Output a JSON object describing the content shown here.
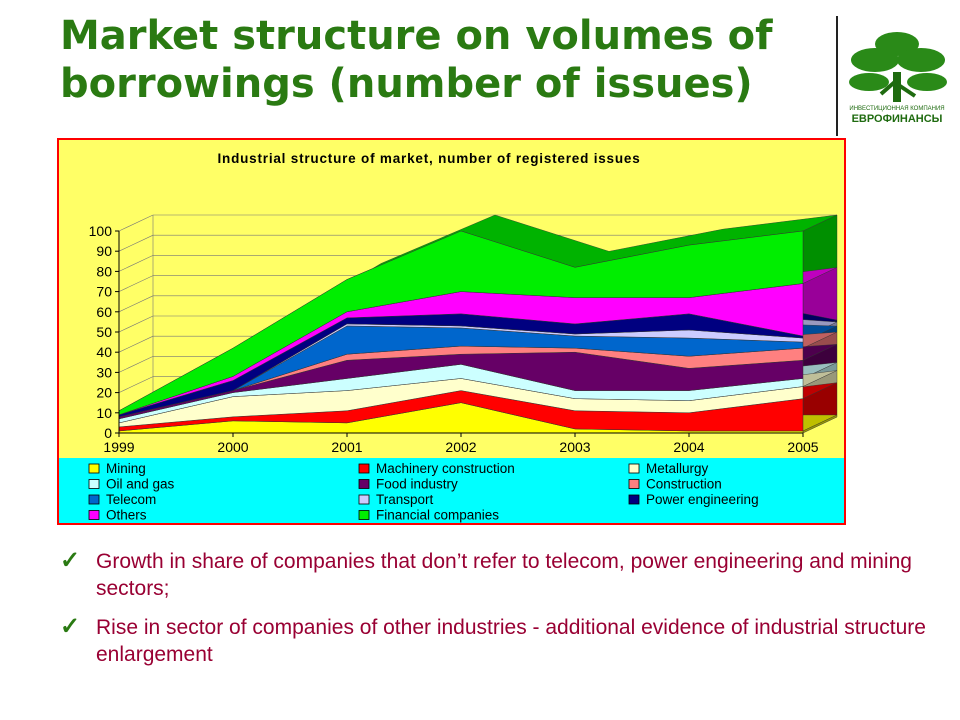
{
  "slide": {
    "title": "Market structure on volumes of borrowings (number of issues)",
    "title_color": "#2a7a12",
    "text_color": "#990033",
    "logo": {
      "caption_line1": "ИНВЕСТИЦИОННАЯ КОМПАНИЯ",
      "caption_line2": "ЕВРОФИНАНСЫ",
      "icon": "tree-icon"
    },
    "bullets": [
      "Growth in share of companies that don’t refer to telecom, power engineering and mining sectors;",
      "Rise in sector of companies of other industries  - additional evidence of industrial structure enlargement"
    ]
  },
  "chart_data": {
    "type": "area",
    "title": "Industrial structure of market, number of registered issues",
    "x": [
      "1999",
      "2000",
      "2001",
      "2002",
      "2003",
      "2004",
      "2005"
    ],
    "ylim": [
      0,
      100
    ],
    "yticks": [
      0,
      10,
      20,
      30,
      40,
      50,
      60,
      70,
      80,
      90,
      100
    ],
    "stacked": true,
    "grid": true,
    "legend_position": "bottom",
    "series": [
      {
        "name": "Mining",
        "color": "#ffff00",
        "values": [
          1,
          6,
          5,
          15,
          2,
          1,
          1
        ]
      },
      {
        "name": "Machinery construction",
        "color": "#ff0000",
        "values": [
          2,
          2,
          6,
          6,
          9,
          9,
          16
        ]
      },
      {
        "name": "Metallurgy",
        "color": "#ffffcc",
        "values": [
          2,
          10,
          10,
          6,
          6,
          6,
          6
        ]
      },
      {
        "name": "Oil and gas",
        "color": "#ccffff",
        "values": [
          2,
          2,
          6,
          7,
          4,
          5,
          4
        ]
      },
      {
        "name": "Food industry",
        "color": "#660066",
        "values": [
          1,
          1,
          9,
          5,
          19,
          11,
          9
        ]
      },
      {
        "name": "Construction",
        "color": "#ff8080",
        "values": [
          0,
          0,
          3,
          4,
          2,
          6,
          6
        ]
      },
      {
        "name": "Telecom",
        "color": "#0066cc",
        "values": [
          0,
          0,
          14,
          9,
          6,
          9,
          3
        ]
      },
      {
        "name": "Transport",
        "color": "#ccccff",
        "values": [
          0,
          0,
          1,
          1,
          1,
          4,
          2
        ]
      },
      {
        "name": "Power engineering",
        "color": "#000080",
        "values": [
          1,
          5,
          3,
          6,
          5,
          8,
          1
        ]
      },
      {
        "name": "Others",
        "color": "#ff00ff",
        "values": [
          0,
          2,
          3,
          11,
          13,
          8,
          26
        ]
      },
      {
        "name": "Financial companies",
        "color": "#00ee00",
        "values": [
          2,
          14,
          16,
          30,
          15,
          26,
          26
        ]
      }
    ],
    "colors": {
      "wall": "#ffff66",
      "floor": "#99ffff",
      "legend_band": "#00ffff",
      "side_dark": "#006600"
    }
  }
}
